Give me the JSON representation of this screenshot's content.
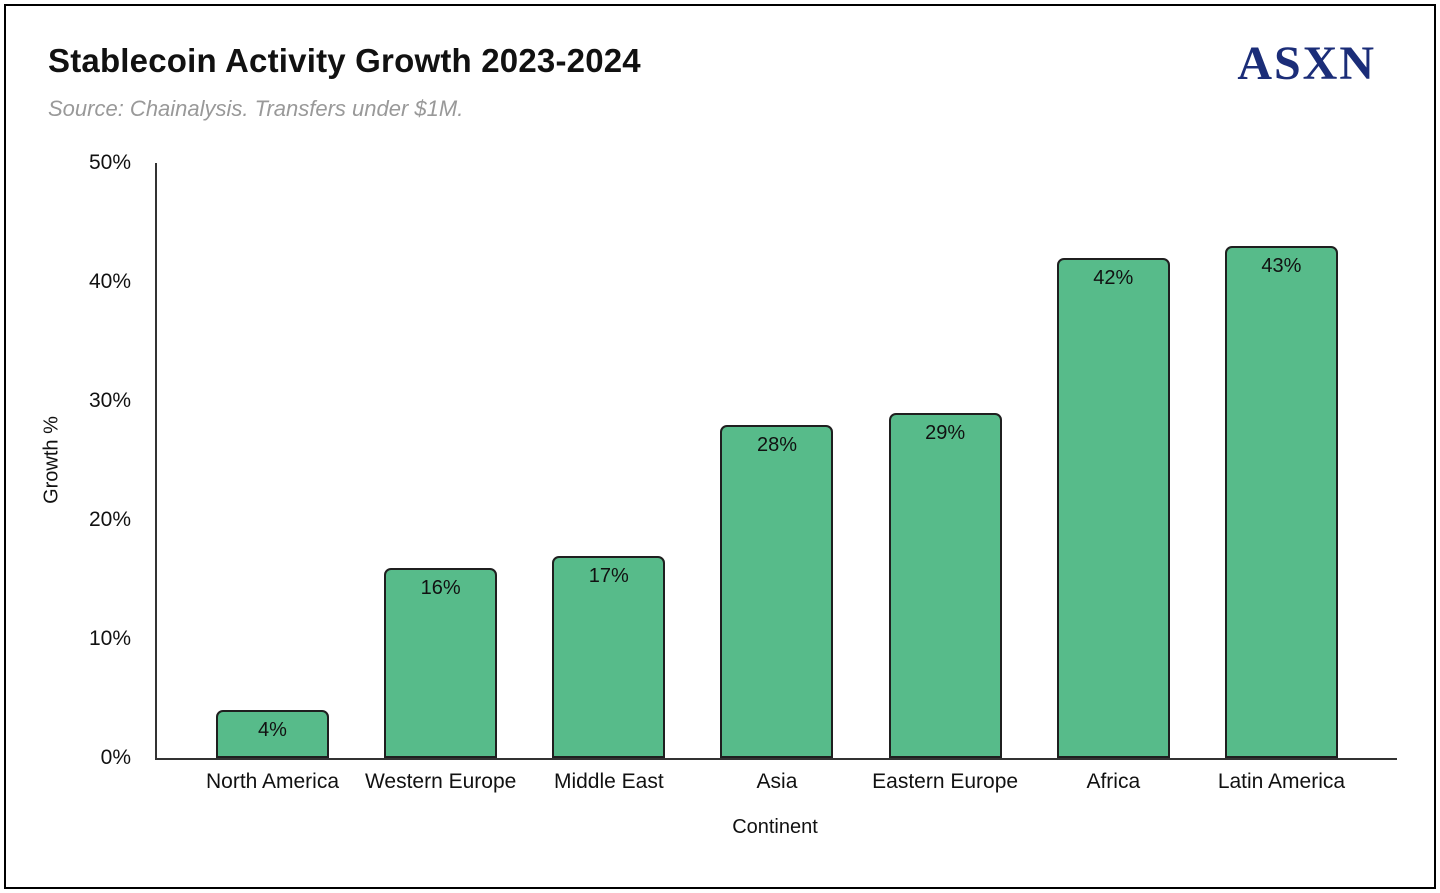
{
  "header": {
    "title": "Stablecoin Activity Growth 2023-2024",
    "subtitle": "Source: Chainalysis. Transfers under $1M.",
    "logo_text": "ASXN",
    "logo_color": "#1b2d78"
  },
  "chart_data": {
    "type": "bar",
    "title": "Stablecoin Activity Growth 2023-2024",
    "subtitle": "Source: Chainalysis. Transfers under $1M.",
    "categories": [
      "North America",
      "Western Europe",
      "Middle East",
      "Asia",
      "Eastern Europe",
      "Africa",
      "Latin America"
    ],
    "values": [
      4,
      16,
      17,
      28,
      29,
      42,
      43
    ],
    "value_labels": [
      "4%",
      "16%",
      "17%",
      "28%",
      "29%",
      "42%",
      "43%"
    ],
    "xlabel": "Continent",
    "ylabel": "Growth %",
    "ylim": [
      0,
      50
    ],
    "yticks": [
      "0%",
      "10%",
      "20%",
      "30%",
      "40%",
      "50%"
    ],
    "grid": false,
    "legend": "none",
    "bar_color": "#57bb8a",
    "bar_border_color": "#1f1f1f",
    "axis_color": "#333333"
  }
}
